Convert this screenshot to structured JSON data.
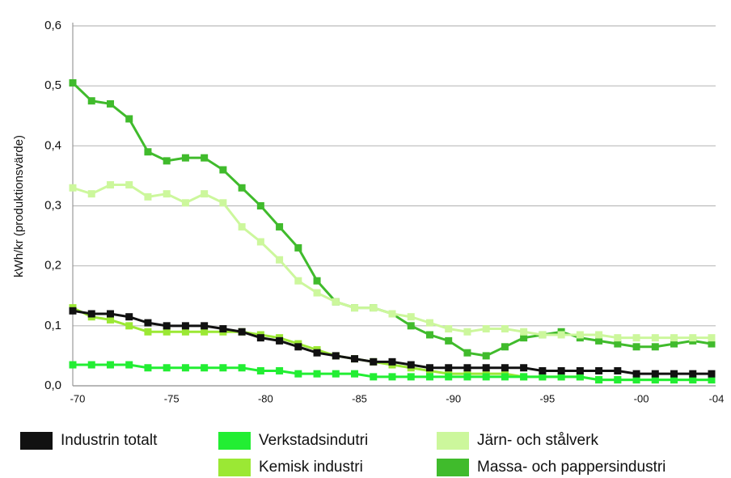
{
  "chart_data": {
    "type": "line",
    "y_label": "kWh/kr (produktionsvärde)",
    "categories": [
      "-70",
      null,
      null,
      null,
      null,
      "-75",
      null,
      null,
      null,
      null,
      "-80",
      null,
      null,
      null,
      null,
      "-85",
      null,
      null,
      null,
      null,
      "-90",
      null,
      null,
      null,
      null,
      "-95",
      null,
      null,
      null,
      null,
      "-00",
      null,
      null,
      null,
      "-04"
    ],
    "ylim": [
      0,
      0.6
    ],
    "yticks": [
      {
        "value": 0,
        "label": "0,0"
      },
      {
        "value": 0.1,
        "label": "0,1"
      },
      {
        "value": 0.2,
        "label": "0,2"
      },
      {
        "value": 0.3,
        "label": "0,3"
      },
      {
        "value": 0.4,
        "label": "0,4"
      },
      {
        "value": 0.5,
        "label": "0,5"
      },
      {
        "value": 0.6,
        "label": "0,6"
      }
    ],
    "grid": true,
    "series": [
      {
        "name": "Industrin totalt",
        "color": "#111111",
        "values": [
          0.125,
          0.12,
          0.12,
          0.115,
          0.105,
          0.1,
          0.1,
          0.1,
          0.095,
          0.09,
          0.08,
          0.075,
          0.065,
          0.055,
          0.05,
          0.045,
          0.04,
          0.04,
          0.035,
          0.03,
          0.03,
          0.03,
          0.03,
          0.03,
          0.03,
          0.025,
          0.025,
          0.025,
          0.025,
          0.025,
          0.02,
          0.02,
          0.02,
          0.02,
          0.02
        ]
      },
      {
        "name": "Verkstadsindutri",
        "color": "#22ee33",
        "values": [
          0.035,
          0.035,
          0.035,
          0.035,
          0.03,
          0.03,
          0.03,
          0.03,
          0.03,
          0.03,
          0.025,
          0.025,
          0.02,
          0.02,
          0.02,
          0.02,
          0.015,
          0.015,
          0.015,
          0.015,
          0.015,
          0.015,
          0.015,
          0.015,
          0.015,
          0.015,
          0.015,
          0.015,
          0.01,
          0.01,
          0.01,
          0.01,
          0.01,
          0.01,
          0.01
        ]
      },
      {
        "name": "Järn- och stålverk",
        "color": "#ccf79c",
        "values": [
          0.33,
          0.32,
          0.335,
          0.335,
          0.315,
          0.32,
          0.305,
          0.32,
          0.305,
          0.265,
          0.24,
          0.21,
          0.175,
          0.155,
          0.14,
          0.13,
          0.13,
          0.12,
          0.115,
          0.105,
          0.095,
          0.09,
          0.095,
          0.095,
          0.09,
          0.085,
          0.085,
          0.085,
          0.085,
          0.08,
          0.08,
          0.08,
          0.08,
          0.08,
          0.08
        ]
      },
      {
        "name": "Kemisk industri",
        "color": "#9be834",
        "values": [
          0.13,
          0.115,
          0.11,
          0.1,
          0.09,
          0.09,
          0.09,
          0.09,
          0.09,
          0.09,
          0.085,
          0.08,
          0.07,
          0.06,
          0.05,
          0.045,
          0.04,
          0.035,
          0.03,
          0.025,
          0.02,
          0.02,
          0.02,
          0.02,
          0.015,
          0.015,
          0.015,
          0.015,
          0.01,
          0.01,
          0.01,
          0.01,
          0.01,
          0.01,
          0.01
        ]
      },
      {
        "name": "Massa- och pappersindustri",
        "color": "#40bb2c",
        "values": [
          0.505,
          0.475,
          0.47,
          0.445,
          0.39,
          0.375,
          0.38,
          0.38,
          0.36,
          0.33,
          0.3,
          0.265,
          0.23,
          0.175,
          0.14,
          0.13,
          0.13,
          0.12,
          0.1,
          0.085,
          0.075,
          0.055,
          0.05,
          0.065,
          0.08,
          0.085,
          0.09,
          0.08,
          0.075,
          0.07,
          0.065,
          0.065,
          0.07,
          0.075,
          0.07
        ]
      }
    ]
  }
}
